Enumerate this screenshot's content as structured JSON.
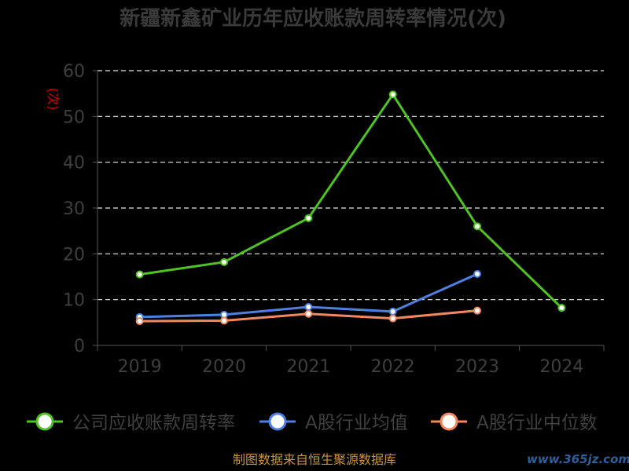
{
  "chart_data": {
    "type": "line",
    "title": "新疆新鑫矿业历年应收账款周转率情况(次)",
    "ylabel": "(次)",
    "xlabel": "",
    "categories": [
      "2019",
      "2020",
      "2021",
      "2022",
      "2023",
      "2024"
    ],
    "ylim": [
      0,
      60
    ],
    "yticks": [
      0,
      10,
      20,
      30,
      40,
      50,
      60
    ],
    "grid": "horizontal-dashed",
    "legend_position": "bottom",
    "series": [
      {
        "name": "公司应收账款周转率",
        "color": "#4fc323",
        "values": [
          15.5,
          18.2,
          27.8,
          54.8,
          26.0,
          8.2
        ]
      },
      {
        "name": "A股行业均值",
        "color": "#4f7fe0",
        "values": [
          6.2,
          6.7,
          8.4,
          7.4,
          15.6,
          null
        ]
      },
      {
        "name": "A股行业中位数",
        "color": "#f4875f",
        "values": [
          5.3,
          5.4,
          6.9,
          5.9,
          7.6,
          null
        ]
      }
    ]
  },
  "footer": {
    "source": "制图数据来自恒生聚源数据库",
    "watermark": "www.365jz.com"
  }
}
